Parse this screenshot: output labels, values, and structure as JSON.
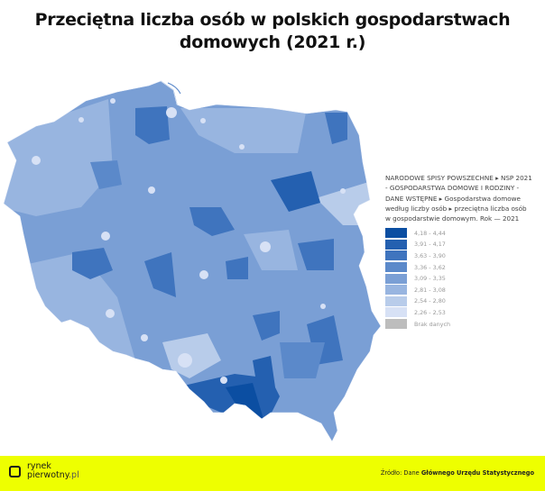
{
  "title": {
    "line1": "Przeciętna liczba osób w polskich gospodarstwach",
    "line2": "domowych (2021 r.)"
  },
  "legend": {
    "title_lines": [
      "NARODOWE SPISY POWSZECHNE ▸ NSP 2021",
      "- GOSPODARSTWA DOMOWE I RODZINY -",
      "DANE WSTĘPNE ▸ Gospodarstwa domowe",
      "według liczby osób ▸ przeciętna liczba osób",
      "w gospodarstwie domowym. Rok — 2021"
    ],
    "items": [
      {
        "label": "4,18 - 4,44",
        "color": "#0B4EA2"
      },
      {
        "label": "3,91 - 4,17",
        "color": "#2460B0"
      },
      {
        "label": "3,63 - 3,90",
        "color": "#3F74BE"
      },
      {
        "label": "3,36 - 3,62",
        "color": "#5B89CA"
      },
      {
        "label": "3,09 - 3,35",
        "color": "#7A9FD5"
      },
      {
        "label": "2,81 - 3,08",
        "color": "#98B5E0"
      },
      {
        "label": "2,54 - 2,80",
        "color": "#B8CCEA"
      },
      {
        "label": "2,26 - 2,53",
        "color": "#D7E1F5"
      },
      {
        "label": "Brak danych",
        "color": "#BDBDBD"
      }
    ]
  },
  "footer": {
    "logo_line1": "rynek",
    "logo_line2": "pierwotny",
    "logo_suffix": ".pl",
    "source_prefix": "Źródło: Dane ",
    "source_bold": "Głównego Urzędu Statystycznego",
    "background": "#EEFF00"
  },
  "chart_data": {
    "type": "choropleth",
    "title": "Przeciętna liczba osób w polskich gospodarstwach domowych (2021 r.)",
    "region": "Poland (powiaty)",
    "legend_position": "right",
    "classes": [
      {
        "min": 4.18,
        "max": 4.44,
        "color": "#0B4EA2"
      },
      {
        "min": 3.91,
        "max": 4.17,
        "color": "#2460B0"
      },
      {
        "min": 3.63,
        "max": 3.9,
        "color": "#3F74BE"
      },
      {
        "min": 3.36,
        "max": 3.62,
        "color": "#5B89CA"
      },
      {
        "min": 3.09,
        "max": 3.35,
        "color": "#7A9FD5"
      },
      {
        "min": 2.81,
        "max": 3.08,
        "color": "#98B5E0"
      },
      {
        "min": 2.54,
        "max": 2.8,
        "color": "#B8CCEA"
      },
      {
        "min": 2.26,
        "max": 2.53,
        "color": "#D7E1F5"
      },
      {
        "label": "Brak danych",
        "color": "#BDBDBD"
      }
    ],
    "source": "Źródło: Dane Głównego Urzędu Statystycznego"
  }
}
